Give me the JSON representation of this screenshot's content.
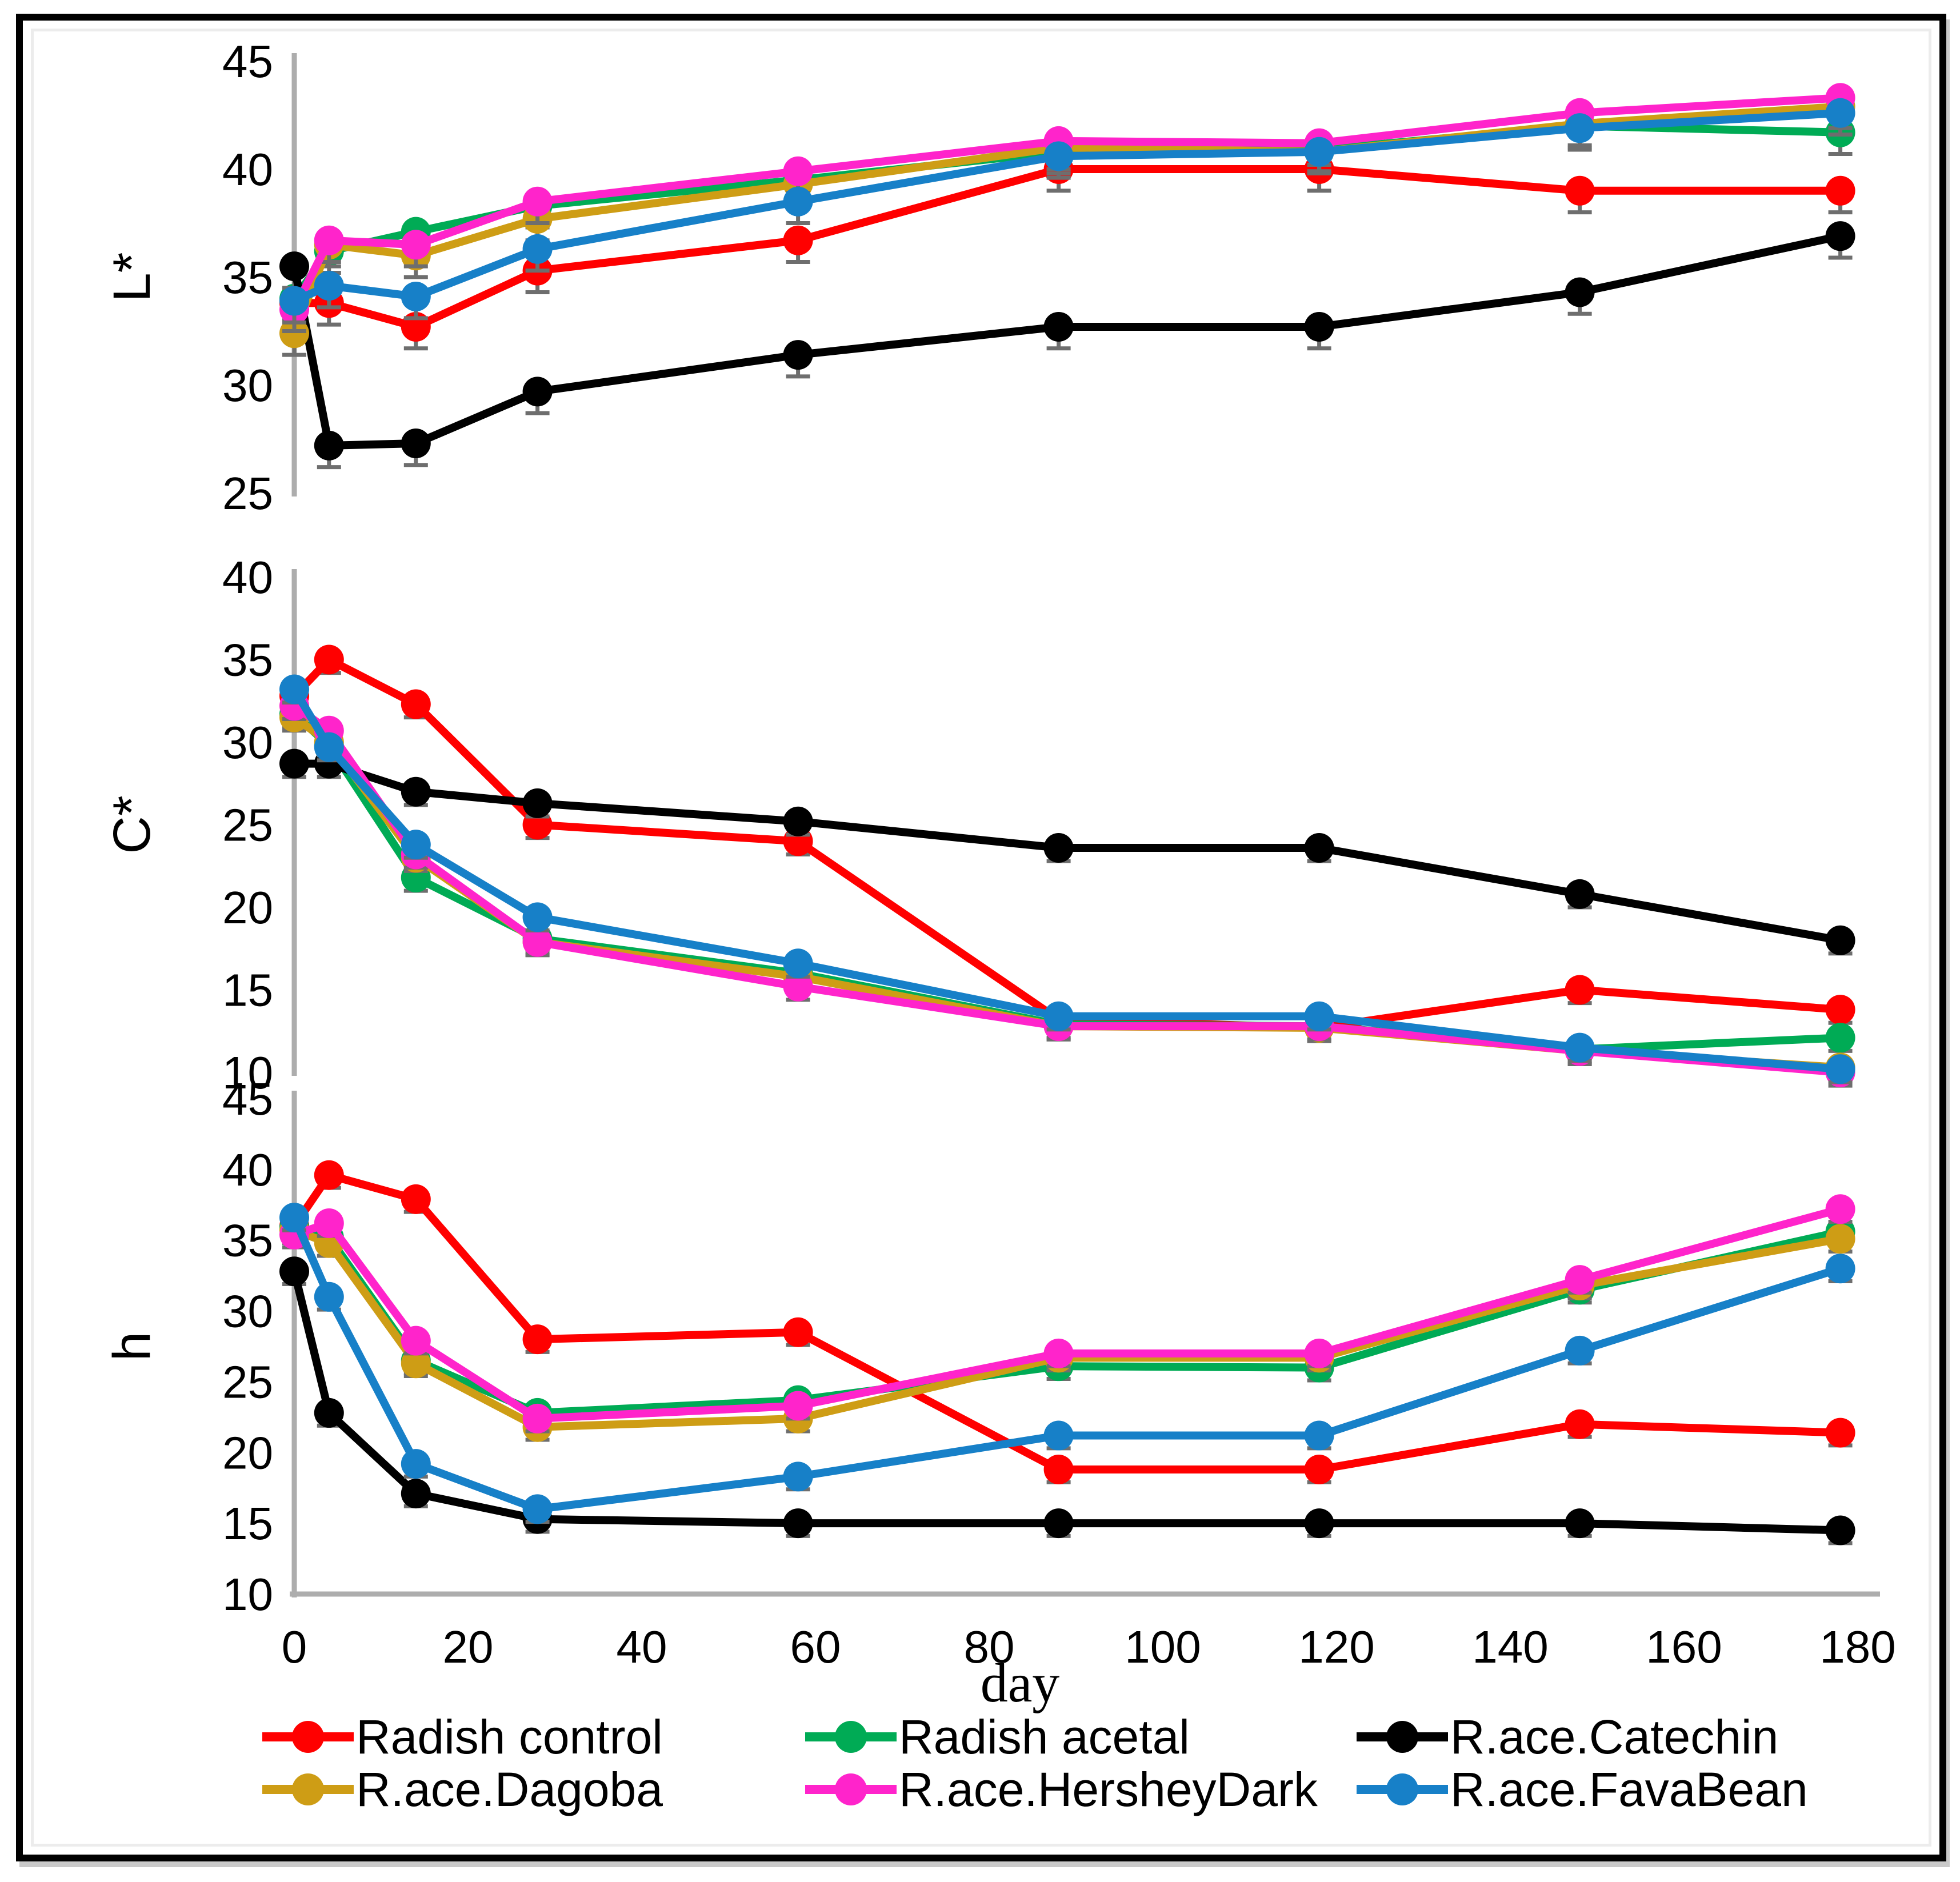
{
  "chart_data": {
    "type": "line",
    "title": "",
    "xlabel": "day",
    "x": [
      0,
      4,
      14,
      28,
      58,
      88,
      118,
      148,
      178
    ],
    "x_ticks": [
      0,
      20,
      40,
      60,
      80,
      100,
      120,
      140,
      160,
      180
    ],
    "xlim": [
      0,
      180
    ],
    "grid": false,
    "legend_position": "bottom",
    "axis_color": "#ADADAD",
    "error_bar_color": "#6E6E6E",
    "panels": [
      {
        "key": "L",
        "ylabel": "L*",
        "ylim": [
          25,
          45
        ],
        "tick_step": 5,
        "error_bar": 1.0
      },
      {
        "key": "C",
        "ylabel": "C*",
        "ylim": [
          10,
          40
        ],
        "tick_step": 5,
        "error_bar": 0.8
      },
      {
        "key": "h",
        "ylabel": "h",
        "ylim": [
          10,
          45
        ],
        "tick_step": 5,
        "error_bar": 0.9
      }
    ],
    "series": [
      {
        "name": "Radish control",
        "color": "#FF0000",
        "L": [
          33.8,
          33.8,
          32.7,
          35.3,
          36.7,
          40.0,
          40.0,
          39.0,
          39.0
        ],
        "C": [
          32.8,
          35.0,
          32.3,
          25.0,
          24.0,
          13.2,
          12.7,
          15.0,
          13.8
        ],
        "h": [
          36.0,
          39.6,
          37.9,
          28.0,
          28.5,
          18.8,
          18.8,
          22.0,
          21.4
        ]
      },
      {
        "name": "Radish acetal",
        "color": "#00AB55",
        "L": [
          34.0,
          36.2,
          37.1,
          38.3,
          39.5,
          40.8,
          40.9,
          42.0,
          41.7
        ],
        "C": [
          31.7,
          29.8,
          21.8,
          18.1,
          16.0,
          12.9,
          12.8,
          11.4,
          12.1
        ],
        "h": [
          35.9,
          35.2,
          26.5,
          22.8,
          23.7,
          26.1,
          26.0,
          31.5,
          35.6
        ]
      },
      {
        "name": "R.ace.Catechin",
        "color": "#000000",
        "L": [
          35.5,
          27.2,
          27.3,
          29.7,
          31.4,
          32.7,
          32.7,
          34.3,
          36.9
        ],
        "C": [
          28.7,
          28.7,
          27.0,
          26.3,
          25.2,
          23.6,
          23.6,
          20.8,
          18.0
        ],
        "h": [
          32.8,
          22.8,
          17.1,
          15.3,
          15.0,
          15.0,
          15.0,
          15.0,
          14.5
        ]
      },
      {
        "name": "R.ace.Dagoba",
        "color": "#CE9D15",
        "L": [
          32.4,
          36.5,
          36.0,
          37.7,
          39.3,
          41.0,
          40.8,
          42.1,
          42.9
        ],
        "C": [
          31.5,
          30.0,
          23.0,
          17.9,
          15.8,
          12.8,
          12.7,
          11.3,
          10.3
        ],
        "h": [
          35.7,
          34.8,
          26.3,
          21.8,
          22.4,
          26.7,
          26.7,
          31.8,
          35.1
        ]
      },
      {
        "name": "R.ace.HersheyDark",
        "color": "#FF24CB",
        "L": [
          33.5,
          36.7,
          36.5,
          38.5,
          39.9,
          41.3,
          41.2,
          42.6,
          43.3
        ],
        "C": [
          32.2,
          30.7,
          23.2,
          17.9,
          15.2,
          12.8,
          12.8,
          11.3,
          10.0
        ],
        "h": [
          35.4,
          36.2,
          27.9,
          22.4,
          23.3,
          27.0,
          27.0,
          32.2,
          37.2
        ]
      },
      {
        "name": "R.ace.FavaBean",
        "color": "#1780C8",
        "L": [
          33.9,
          34.6,
          34.1,
          36.3,
          38.5,
          40.6,
          40.8,
          41.9,
          42.6
        ],
        "C": [
          33.2,
          29.7,
          23.8,
          19.4,
          16.6,
          13.4,
          13.4,
          11.5,
          10.2
        ],
        "h": [
          36.6,
          31.0,
          19.2,
          16.0,
          18.3,
          21.2,
          21.2,
          27.2,
          33.0
        ]
      }
    ]
  }
}
